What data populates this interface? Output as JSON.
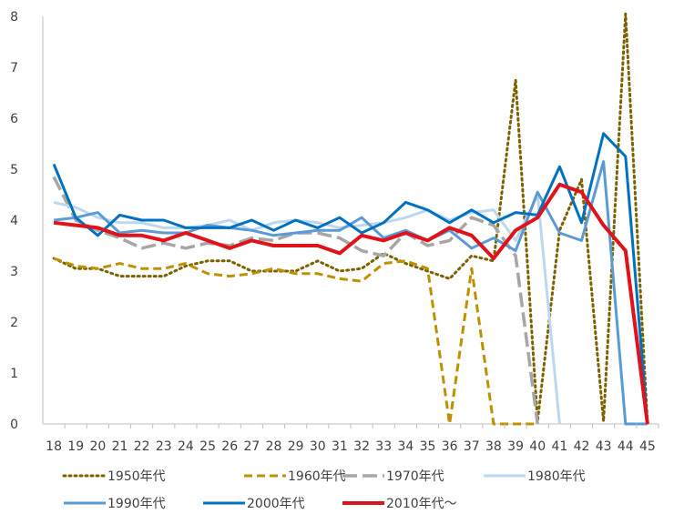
{
  "chart_data": {
    "type": "line",
    "categories": [
      "18",
      "19",
      "20",
      "21",
      "22",
      "23",
      "24",
      "25",
      "26",
      "27",
      "28",
      "29",
      "30",
      "31",
      "32",
      "33",
      "34",
      "35",
      "36",
      "37",
      "38",
      "39",
      "40",
      "41",
      "42",
      "43",
      "44",
      "45"
    ],
    "ylim": [
      0,
      8
    ],
    "yticks": [
      "0",
      "1",
      "2",
      "3",
      "4",
      "5",
      "6",
      "7",
      "8"
    ],
    "grid": false,
    "legend_position": "bottom",
    "series": [
      {
        "name": "1950年代",
        "color": "#7a6200",
        "style": "dotted",
        "values": [
          3.25,
          3.05,
          3.05,
          2.9,
          2.9,
          2.9,
          3.1,
          3.2,
          3.2,
          3.0,
          3.0,
          3.0,
          3.2,
          3.0,
          3.05,
          3.35,
          3.15,
          3.0,
          2.85,
          3.3,
          3.2,
          6.75,
          0.05,
          3.8,
          4.8,
          0.05,
          8.05,
          0
        ]
      },
      {
        "name": "1960年代",
        "color": "#bf9000",
        "style": "dashed",
        "values": [
          3.25,
          3.1,
          3.05,
          3.15,
          3.05,
          3.05,
          3.15,
          2.95,
          2.9,
          2.95,
          3.05,
          2.95,
          2.95,
          2.85,
          2.8,
          3.15,
          3.2,
          3.05,
          0,
          3.05,
          0,
          0,
          0,
          null,
          null,
          null,
          null,
          null
        ]
      },
      {
        "name": "1970年代",
        "color": "#a6a6a6",
        "style": "longdash",
        "values": [
          4.85,
          4.0,
          3.8,
          3.65,
          3.45,
          3.55,
          3.45,
          3.55,
          3.5,
          3.65,
          3.6,
          3.75,
          3.75,
          3.65,
          3.4,
          3.3,
          3.75,
          3.5,
          3.6,
          4.05,
          3.9,
          3.3,
          0,
          null,
          null,
          null,
          null,
          null
        ]
      },
      {
        "name": "1980年代",
        "color": "#bdd7ee",
        "style": "solid",
        "values": [
          4.35,
          4.25,
          4.05,
          3.95,
          3.95,
          3.85,
          3.85,
          3.9,
          4.0,
          3.8,
          3.95,
          4.0,
          3.95,
          3.85,
          3.9,
          3.95,
          4.05,
          4.2,
          4.0,
          4.15,
          4.2,
          3.6,
          4.5,
          0,
          null,
          null,
          null,
          null
        ]
      },
      {
        "name": "1990年代",
        "color": "#5b9bd5",
        "style": "solid",
        "values": [
          4.0,
          4.05,
          4.15,
          3.75,
          3.8,
          3.75,
          3.75,
          3.9,
          3.85,
          3.8,
          3.7,
          3.75,
          3.8,
          3.8,
          4.05,
          3.65,
          3.8,
          3.6,
          3.8,
          3.45,
          3.65,
          3.4,
          4.55,
          3.75,
          3.6,
          5.15,
          0,
          0
        ]
      },
      {
        "name": "2000年代",
        "color": "#0070c0",
        "style": "solid",
        "values": [
          5.1,
          4.05,
          3.7,
          4.1,
          4.0,
          4.0,
          3.85,
          3.85,
          3.85,
          4.0,
          3.8,
          4.0,
          3.85,
          4.05,
          3.75,
          3.95,
          4.35,
          4.2,
          3.95,
          4.2,
          3.95,
          4.15,
          4.1,
          5.05,
          3.95,
          5.7,
          5.25,
          0
        ]
      },
      {
        "name": "2010年代～",
        "color": "#e0121a",
        "style": "solid",
        "values": [
          3.95,
          3.9,
          3.85,
          3.7,
          3.7,
          3.6,
          3.75,
          3.6,
          3.45,
          3.6,
          3.5,
          3.5,
          3.5,
          3.35,
          3.7,
          3.6,
          3.75,
          3.6,
          3.85,
          3.7,
          3.25,
          3.8,
          4.05,
          4.7,
          4.55,
          3.9,
          3.4,
          0
        ]
      }
    ]
  }
}
